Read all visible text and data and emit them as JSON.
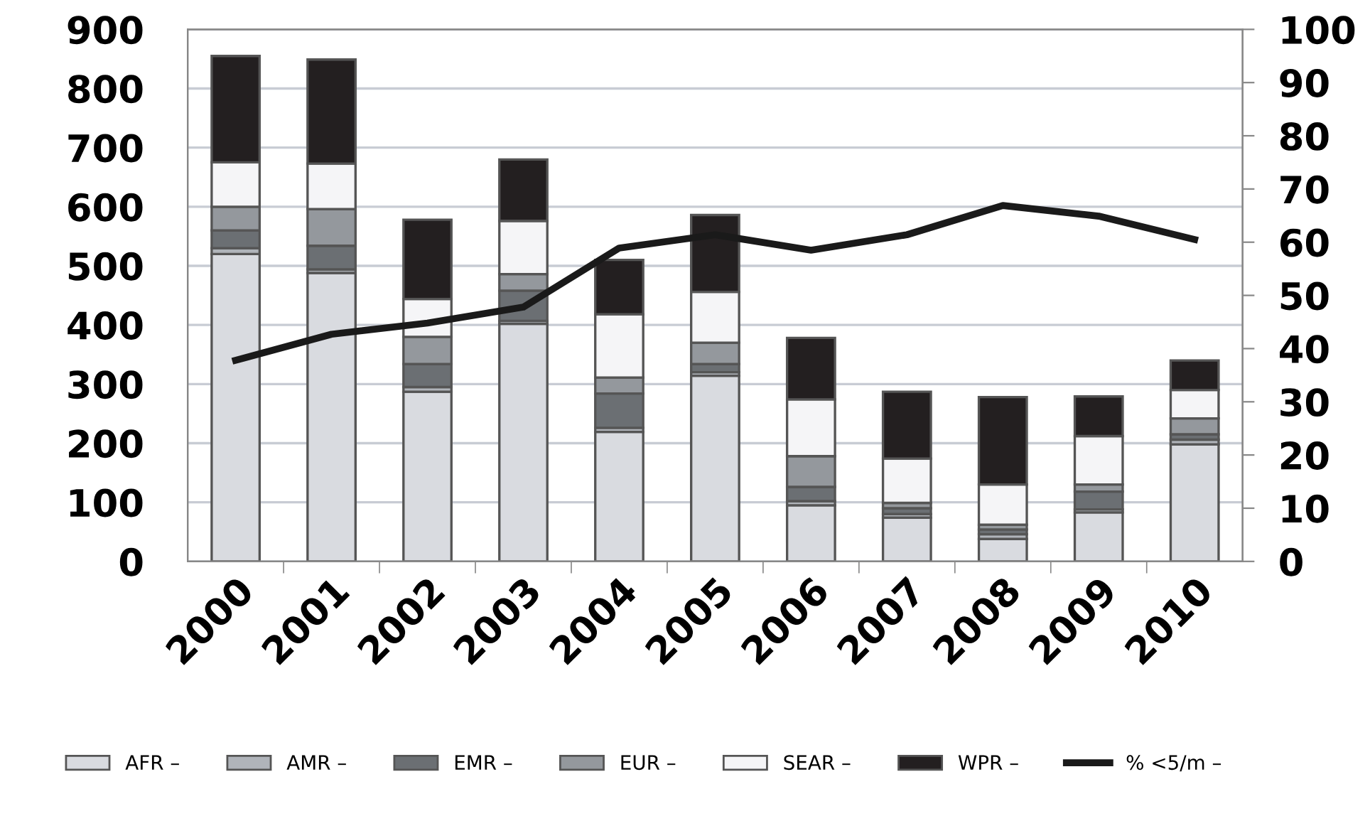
{
  "chart_data": {
    "type": "bar",
    "stacked": true,
    "categories": [
      "2000",
      "2001",
      "2002",
      "2003",
      "2004",
      "2005",
      "2006",
      "2007",
      "2008",
      "2009",
      "2010"
    ],
    "series": [
      {
        "name": "AFR –",
        "color": "#d9dbe0",
        "values": [
          520,
          488,
          287,
          402,
          219,
          314,
          95,
          74,
          38,
          83,
          198
        ]
      },
      {
        "name": "AMR –",
        "color": "#b0b4ba",
        "values": [
          10,
          6,
          8,
          5,
          7,
          6,
          7,
          6,
          8,
          5,
          8
        ]
      },
      {
        "name": "EMR –",
        "color": "#6b6f73",
        "values": [
          30,
          40,
          39,
          51,
          58,
          14,
          24,
          10,
          8,
          30,
          9
        ]
      },
      {
        "name": "EUR –",
        "color": "#94989d",
        "values": [
          40,
          62,
          46,
          28,
          27,
          36,
          52,
          9,
          8,
          12,
          27
        ]
      },
      {
        "name": "SEAR –",
        "color": "#f5f5f7",
        "values": [
          75,
          77,
          64,
          90,
          107,
          86,
          96,
          75,
          68,
          82,
          48
        ]
      },
      {
        "name": "WPR –",
        "color": "#231f20",
        "values": [
          180,
          176,
          134,
          104,
          92,
          130,
          104,
          113,
          148,
          67,
          50
        ]
      },
      {
        "name": "% <5/m –",
        "type": "line",
        "axis": "y2",
        "color": "#1a1a1a",
        "values": [
          37.8,
          42.7,
          44.8,
          47.8,
          58.9,
          61.4,
          58.5,
          61.4,
          66.9,
          64.9,
          60.5
        ]
      }
    ],
    "ylim": [
      0,
      900
    ],
    "yticks": [
      0,
      100,
      200,
      300,
      400,
      500,
      600,
      700,
      800,
      900
    ],
    "y2lim": [
      0,
      100
    ],
    "y2ticks": [
      0,
      10,
      20,
      30,
      40,
      50,
      60,
      70,
      80,
      90,
      100
    ],
    "grid": "y",
    "legend": "bottom",
    "marker": "none",
    "line_style": "solid"
  }
}
